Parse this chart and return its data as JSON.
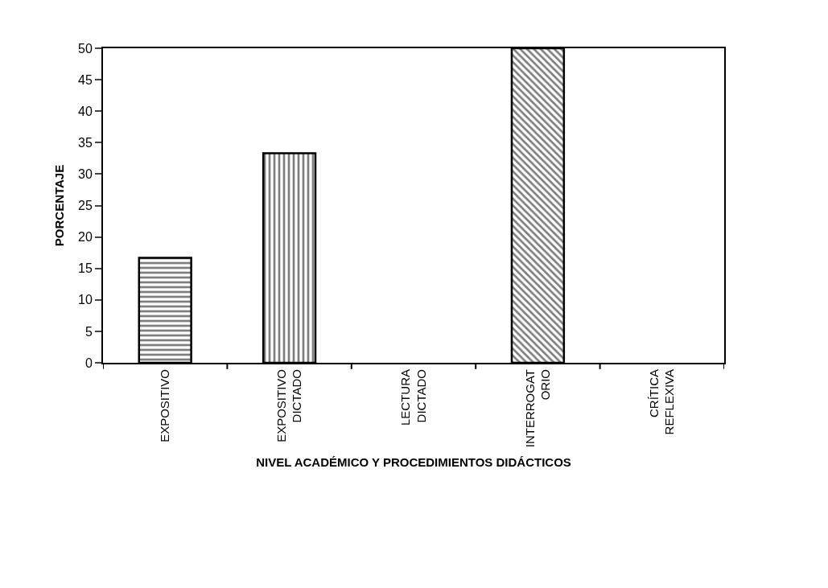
{
  "chart_data": {
    "type": "bar",
    "xlabel": "NIVEL ACADÉMICO Y PROCEDIMIENTOS DIDÁCTICOS",
    "ylabel": "PORCENTAJE",
    "categories": [
      "EXPOSITIVO",
      "EXPOSITIVO\nDICTADO",
      "LECTURA\nDICTADO",
      "INTERROGAT\nORIO",
      "CRÍTICA\nREFLEXIVA"
    ],
    "values": [
      16.7,
      33.3,
      0,
      50,
      0
    ],
    "color": "#000000",
    "ylim": [
      0,
      50
    ],
    "yticks": [
      0,
      5,
      10,
      15,
      20,
      25,
      30,
      35,
      40,
      45,
      50
    ]
  }
}
